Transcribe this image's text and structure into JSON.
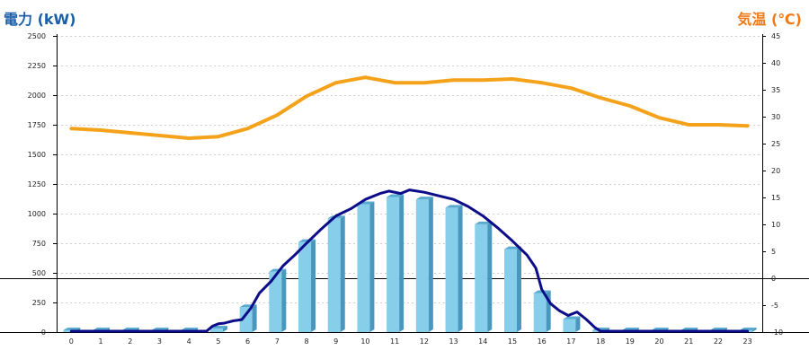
{
  "colors": {
    "left_title": "#1a5fa8",
    "right_title": "#ee7a1a",
    "bar_front": "#87ceeb",
    "bar_side": "#4a97bd",
    "bar_top": "#5aa9cf",
    "power_line": "#0d0d8a",
    "temp_line": "#f5a21b",
    "grid": "#bfbfbf",
    "axis": "#000000"
  },
  "chart_data": {
    "type": "bar",
    "title_left": "電力 (kW)",
    "title_right": "気温 (℃)",
    "categories": [
      "0",
      "1",
      "2",
      "3",
      "4",
      "5",
      "6",
      "7",
      "8",
      "9",
      "10",
      "11",
      "12",
      "13",
      "14",
      "15",
      "16",
      "17",
      "18",
      "19",
      "20",
      "21",
      "22",
      "23"
    ],
    "y_left": {
      "min": 0,
      "max": 2500,
      "ticks": [
        0,
        250,
        500,
        750,
        1000,
        1250,
        1500,
        1750,
        2000,
        2250,
        2500
      ]
    },
    "y_right": {
      "min": -10,
      "max": 45,
      "ticks": [
        -10,
        -5,
        0,
        5,
        10,
        15,
        20,
        25,
        30,
        35,
        40,
        45
      ]
    },
    "grid": true,
    "reference_line_right": 0,
    "bars": [
      0,
      0,
      0,
      0,
      0,
      30,
      210,
      510,
      760,
      960,
      1080,
      1140,
      1120,
      1050,
      910,
      700,
      330,
      110,
      0,
      0,
      0,
      0,
      0,
      0
    ],
    "power_curve": [
      [
        0,
        0
      ],
      [
        1,
        0
      ],
      [
        2,
        0
      ],
      [
        3,
        0
      ],
      [
        4,
        0
      ],
      [
        4.6,
        0
      ],
      [
        4.8,
        50
      ],
      [
        5.0,
        70
      ],
      [
        5.2,
        75
      ],
      [
        5.5,
        95
      ],
      [
        5.8,
        105
      ],
      [
        6.1,
        200
      ],
      [
        6.4,
        330
      ],
      [
        6.8,
        430
      ],
      [
        7.2,
        560
      ],
      [
        7.6,
        650
      ],
      [
        8.0,
        750
      ],
      [
        8.5,
        870
      ],
      [
        9.0,
        980
      ],
      [
        9.5,
        1040
      ],
      [
        10.0,
        1120
      ],
      [
        10.5,
        1170
      ],
      [
        10.8,
        1190
      ],
      [
        11.2,
        1170
      ],
      [
        11.5,
        1200
      ],
      [
        12.0,
        1180
      ],
      [
        12.5,
        1150
      ],
      [
        13.0,
        1120
      ],
      [
        13.5,
        1060
      ],
      [
        14.0,
        980
      ],
      [
        14.5,
        880
      ],
      [
        15.0,
        770
      ],
      [
        15.5,
        650
      ],
      [
        15.8,
        540
      ],
      [
        16.0,
        360
      ],
      [
        16.3,
        240
      ],
      [
        16.6,
        180
      ],
      [
        16.9,
        140
      ],
      [
        17.2,
        170
      ],
      [
        17.5,
        110
      ],
      [
        17.8,
        40
      ],
      [
        18.0,
        0
      ],
      [
        19,
        0
      ],
      [
        20,
        0
      ],
      [
        21,
        0
      ],
      [
        22,
        0
      ],
      [
        23,
        0
      ]
    ],
    "temperature": [
      27.8,
      27.5,
      27.0,
      26.5,
      26.0,
      26.3,
      27.8,
      30.3,
      33.8,
      36.3,
      37.3,
      36.3,
      36.3,
      36.8,
      36.8,
      37.0,
      36.3,
      35.3,
      33.5,
      32.0,
      29.8,
      28.5,
      28.5,
      28.3
    ]
  }
}
